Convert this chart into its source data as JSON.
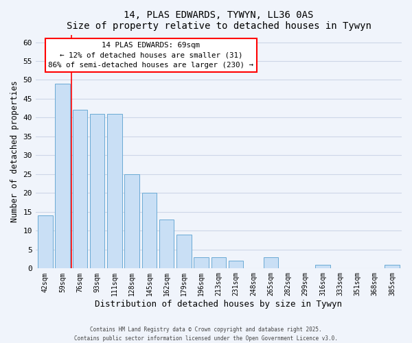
{
  "title": "14, PLAS EDWARDS, TYWYN, LL36 0AS",
  "subtitle": "Size of property relative to detached houses in Tywyn",
  "xlabel": "Distribution of detached houses by size in Tywyn",
  "ylabel": "Number of detached properties",
  "bar_labels": [
    "42sqm",
    "59sqm",
    "76sqm",
    "93sqm",
    "111sqm",
    "128sqm",
    "145sqm",
    "162sqm",
    "179sqm",
    "196sqm",
    "213sqm",
    "231sqm",
    "248sqm",
    "265sqm",
    "282sqm",
    "299sqm",
    "316sqm",
    "333sqm",
    "351sqm",
    "368sqm",
    "385sqm"
  ],
  "bar_values": [
    14,
    49,
    42,
    41,
    41,
    25,
    20,
    13,
    9,
    3,
    3,
    2,
    0,
    3,
    0,
    0,
    1,
    0,
    0,
    0,
    1
  ],
  "bar_color": "#c9dff5",
  "bar_edge_color": "#6aaad4",
  "ylim": [
    0,
    62
  ],
  "yticks": [
    0,
    5,
    10,
    15,
    20,
    25,
    30,
    35,
    40,
    45,
    50,
    55,
    60
  ],
  "property_label": "14 PLAS EDWARDS: 69sqm",
  "annotation_line1": "← 12% of detached houses are smaller (31)",
  "annotation_line2": "86% of semi-detached houses are larger (230) →",
  "vline_x": 1.5,
  "footer_line1": "Contains HM Land Registry data © Crown copyright and database right 2025.",
  "footer_line2": "Contains public sector information licensed under the Open Government Licence v3.0.",
  "background_color": "#f0f4fb",
  "plot_bg_color": "#f0f4fb",
  "grid_color": "#cdd6e8"
}
